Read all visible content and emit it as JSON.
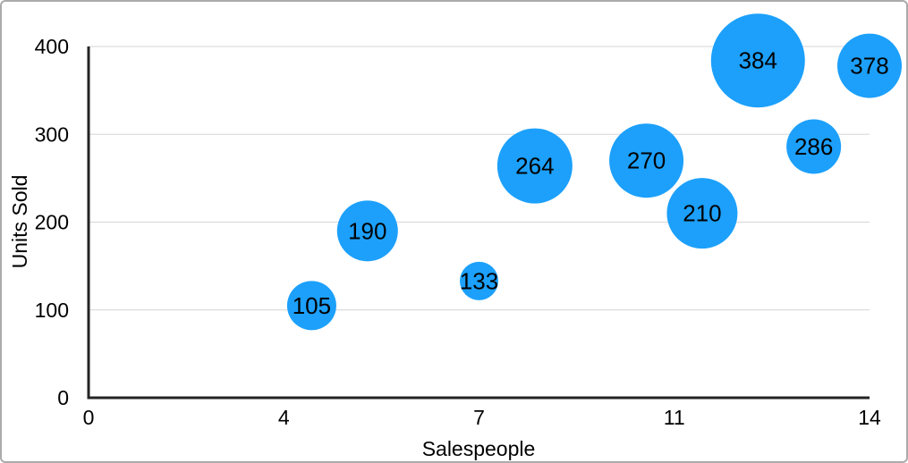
{
  "chart_data": {
    "type": "scatter",
    "subtype": "bubble",
    "title": "",
    "xlabel": "Salespeople",
    "ylabel": "Units Sold",
    "xlim": [
      0,
      14
    ],
    "ylim": [
      0,
      400
    ],
    "grid": "horizontal-only",
    "legend": null,
    "x_ticks": [
      {
        "pos": 0,
        "label": "0"
      },
      {
        "pos": 3.5,
        "label": "4"
      },
      {
        "pos": 7,
        "label": "7"
      },
      {
        "pos": 10.5,
        "label": "11"
      },
      {
        "pos": 14,
        "label": "14"
      }
    ],
    "y_ticks": [
      {
        "pos": 0,
        "label": "0"
      },
      {
        "pos": 100,
        "label": "100"
      },
      {
        "pos": 200,
        "label": "200"
      },
      {
        "pos": 300,
        "label": "300"
      },
      {
        "pos": 400,
        "label": "400"
      }
    ],
    "points": [
      {
        "x": 4,
        "y": 105,
        "label": "105",
        "radius_px": 27.5
      },
      {
        "x": 5,
        "y": 190,
        "label": "190",
        "radius_px": 34
      },
      {
        "x": 7,
        "y": 133,
        "label": "133",
        "radius_px": 21.5
      },
      {
        "x": 8,
        "y": 264,
        "label": "264",
        "radius_px": 42
      },
      {
        "x": 10,
        "y": 270,
        "label": "270",
        "radius_px": 41.5
      },
      {
        "x": 11,
        "y": 210,
        "label": "210",
        "radius_px": 39.5
      },
      {
        "x": 12,
        "y": 384,
        "label": "384",
        "radius_px": 52.5
      },
      {
        "x": 13,
        "y": 286,
        "label": "286",
        "radius_px": 30.5
      },
      {
        "x": 14,
        "y": 378,
        "label": "378",
        "radius_px": 36
      }
    ]
  },
  "colors": {
    "bubble_fill": "#1CA0FB",
    "bubble_label": "#000000",
    "grid_line": "#d6d6d6",
    "axis_line": "#242424",
    "tick_text": "#000000",
    "frame_border": "#ababab",
    "background": "#ffffff"
  }
}
